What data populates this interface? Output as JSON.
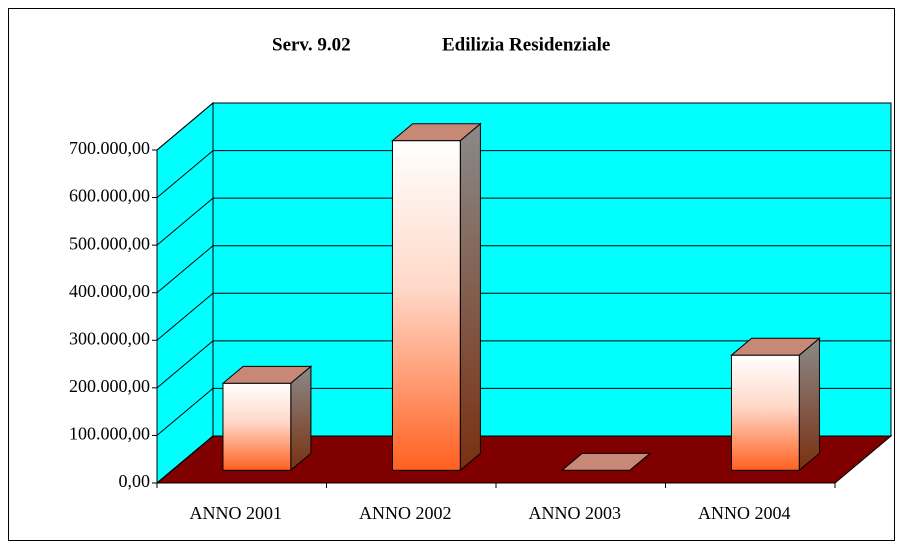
{
  "chart_data": {
    "type": "bar3d",
    "title": "Serv. 9.02",
    "subtitle": "Edilizia Residenziale",
    "categories": [
      "ANNO 2001",
      "ANNO 2002",
      "ANNO 2003",
      "ANNO 2004"
    ],
    "values": [
      183000,
      693000,
      0,
      242000
    ],
    "ylim": [
      0,
      700000
    ],
    "yticks": [
      {
        "value": 0,
        "label": "0,00"
      },
      {
        "value": 100000,
        "label": "100.000,00"
      },
      {
        "value": 200000,
        "label": "200.000,00"
      },
      {
        "value": 300000,
        "label": "300.000,00"
      },
      {
        "value": 400000,
        "label": "400.000,00"
      },
      {
        "value": 500000,
        "label": "500.000,00"
      },
      {
        "value": 600000,
        "label": "600.000,00"
      },
      {
        "value": 700000,
        "label": "700.000,00"
      }
    ],
    "grid": true,
    "wall_color": "#00ffff",
    "floor_color": "#800000",
    "color": "#ff6020"
  }
}
